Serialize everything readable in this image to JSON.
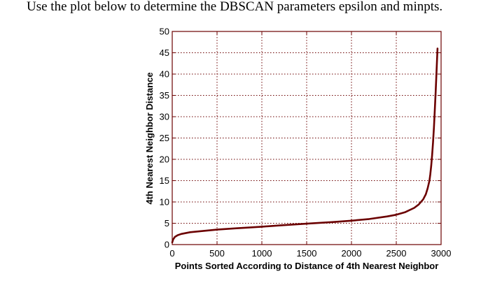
{
  "question_text": "Use the plot below to determine the DBSCAN parameters epsilon and minpts.",
  "colors": {
    "curve": "#6b0000",
    "frame": "#6b0000",
    "grid": "#6b0000",
    "text": "#000000"
  },
  "chart_data": {
    "type": "line",
    "title": "",
    "xlabel": "Points Sorted According to Distance of 4th Nearest Neighbor",
    "ylabel": "4th Nearest Neighbor Distance",
    "xlim": [
      0,
      3000
    ],
    "ylim": [
      0,
      50
    ],
    "xticks": [
      0,
      500,
      1000,
      1500,
      2000,
      2500,
      3000
    ],
    "yticks": [
      0,
      5,
      10,
      15,
      20,
      25,
      30,
      35,
      40,
      45,
      50
    ],
    "grid": true,
    "legend": "none",
    "series": [
      {
        "x": [
          0,
          10,
          30,
          60,
          100,
          200,
          300,
          500,
          700,
          1000,
          1200,
          1500,
          1800,
          2000,
          2200,
          2400,
          2500,
          2600,
          2700,
          2750,
          2800,
          2830,
          2850,
          2870,
          2880,
          2890,
          2900,
          2910,
          2920,
          2930,
          2940,
          2950,
          2960
        ],
        "y": [
          0.5,
          1.2,
          1.8,
          2.2,
          2.5,
          2.9,
          3.1,
          3.5,
          3.8,
          4.2,
          4.5,
          4.9,
          5.3,
          5.6,
          6.0,
          6.6,
          7.0,
          7.6,
          8.6,
          9.4,
          10.6,
          11.8,
          13.2,
          15.0,
          16.5,
          18.5,
          21.0,
          24.0,
          27.5,
          31.5,
          36.0,
          41.0,
          46.0
        ]
      }
    ]
  }
}
